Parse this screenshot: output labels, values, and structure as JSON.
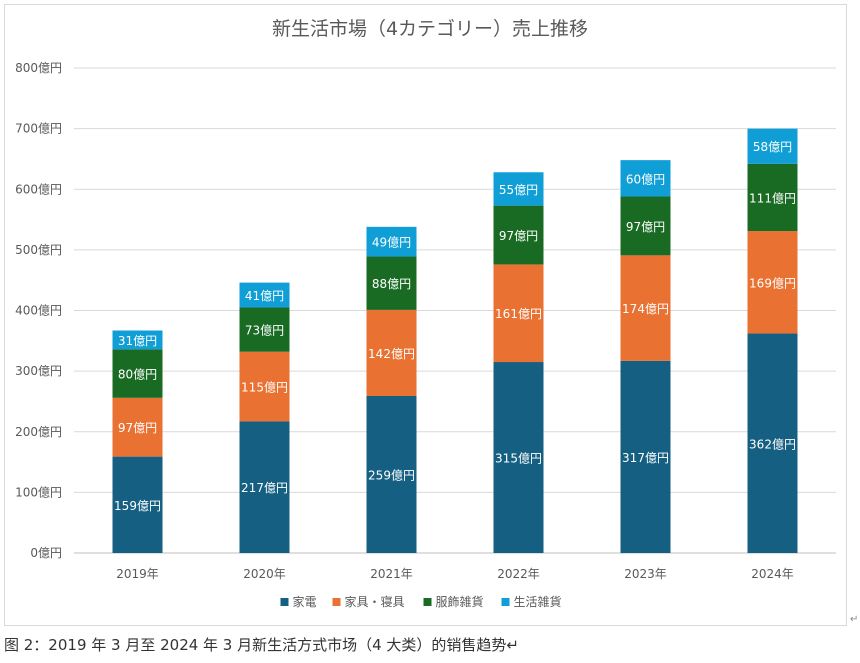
{
  "chart_data": {
    "type": "bar",
    "stacked": true,
    "title": "新生活市場（4カテゴリー）売上推移",
    "xlabel": "",
    "ylabel": "",
    "categories": [
      "2019年",
      "2020年",
      "2021年",
      "2022年",
      "2023年",
      "2024年"
    ],
    "value_suffix": "億円",
    "series": [
      {
        "name": "家電",
        "color": "#156082",
        "values": [
          159,
          217,
          259,
          315,
          317,
          362
        ]
      },
      {
        "name": "家具・寝具",
        "color": "#e97132",
        "values": [
          97,
          115,
          142,
          161,
          174,
          169
        ]
      },
      {
        "name": "服飾雑貨",
        "color": "#196b24",
        "values": [
          80,
          73,
          88,
          97,
          97,
          111
        ]
      },
      {
        "name": "生活雑貨",
        "color": "#0f9ed5",
        "values": [
          31,
          41,
          49,
          55,
          60,
          58
        ]
      }
    ],
    "ylim": [
      0,
      800
    ],
    "yticks": [
      0,
      100,
      200,
      300,
      400,
      500,
      600,
      700,
      800
    ],
    "ytick_labels": [
      "0億円",
      "100億円",
      "200億円",
      "300億円",
      "400億円",
      "500億円",
      "600億円",
      "700億円",
      "800億円"
    ],
    "grid": true,
    "legend_position": "bottom",
    "data_labels": true
  },
  "caption": "图 2：2019 年 3 月至 2024 年 3 月新生活方式市场（4 大类）的销售趋势↵",
  "side_mark": "↵"
}
